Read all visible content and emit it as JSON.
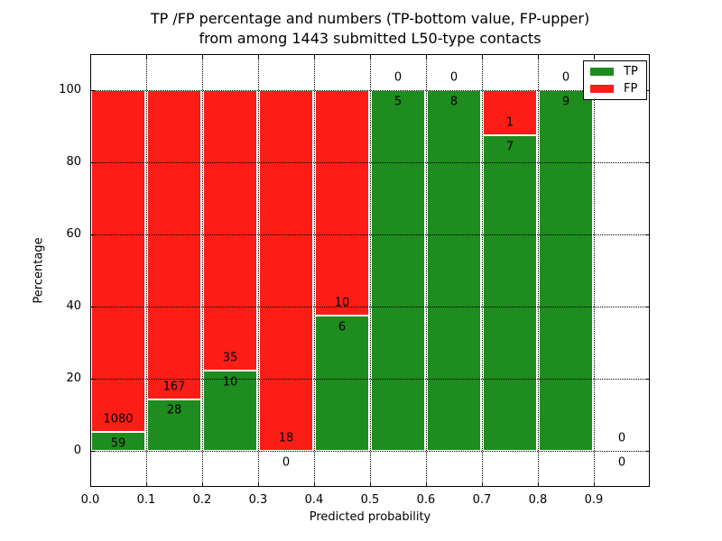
{
  "figure": {
    "title_line1": "TP /FP percentage and numbers (TP-bottom value, FP-upper)",
    "title_line2": "from among 1443 submitted L50-type contacts"
  },
  "chart_data": {
    "type": "bar",
    "stacked": true,
    "title": "TP /FP percentage and numbers (TP-bottom value, FP-upper)\nfrom among 1443 submitted L50-type contacts",
    "xlabel": "Predicted probability",
    "ylabel": "Percentage",
    "total_submitted_contacts": 1443,
    "xlim": [
      0.0,
      1.0
    ],
    "ylim": [
      -10,
      110
    ],
    "xticks": [
      0.0,
      0.1,
      0.2,
      0.3,
      0.4,
      0.5,
      0.6,
      0.7,
      0.8,
      0.9
    ],
    "yticks": [
      0,
      20,
      40,
      60,
      80,
      100
    ],
    "grid": true,
    "grid_style": "dotted",
    "bin_width": 0.1,
    "bin_starts": [
      0.0,
      0.1,
      0.2,
      0.3,
      0.4,
      0.5,
      0.6,
      0.7,
      0.8,
      0.9
    ],
    "series": [
      {
        "name": "TP",
        "color": "#1e8c1e",
        "counts": [
          59,
          28,
          10,
          0,
          6,
          5,
          8,
          7,
          9,
          0
        ]
      },
      {
        "name": "FP",
        "color": "#fc1d17",
        "counts": [
          1080,
          167,
          35,
          18,
          10,
          0,
          0,
          1,
          0,
          0
        ]
      }
    ],
    "tp_percent": [
      5.18,
      14.36,
      22.22,
      0.0,
      37.5,
      100.0,
      100.0,
      87.5,
      100.0,
      null
    ],
    "legend": {
      "position": "upper right",
      "entries": [
        "TP",
        "FP"
      ]
    }
  },
  "colors": {
    "tp": "#1e8c1e",
    "fp": "#fc1d17",
    "bar_edge": "#ffffff",
    "grid": "#000000",
    "text": "#000000",
    "background": "#ffffff"
  }
}
